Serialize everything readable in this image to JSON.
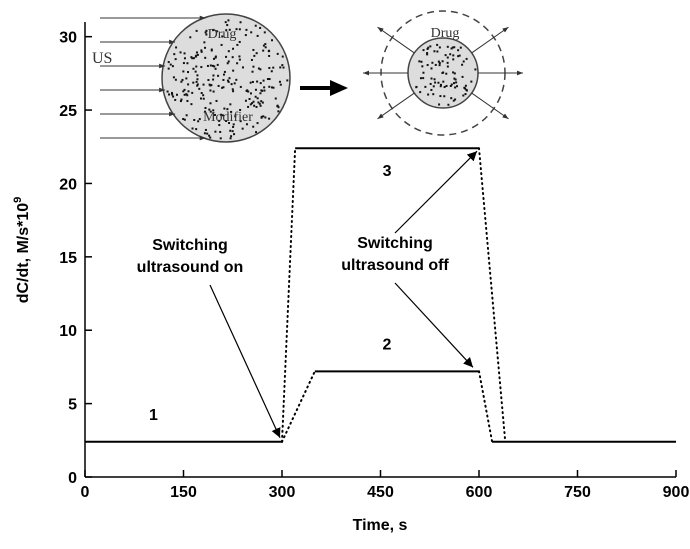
{
  "chart_data": {
    "type": "line",
    "x_label": "Time, s",
    "y_label": "dC/dt, M/s*10",
    "y_label_sup": "9",
    "xlim": [
      0,
      900
    ],
    "xticks": [
      0,
      150,
      300,
      450,
      600,
      750,
      900
    ],
    "ylim": [
      0,
      31
    ],
    "yticks": [
      0,
      5,
      10,
      15,
      20,
      25,
      30
    ],
    "color": "#000000",
    "series": [
      {
        "name": "1",
        "x": [
          0,
          300
        ],
        "values": [
          2.4,
          2.4
        ]
      },
      {
        "name": "2",
        "x": [
          350,
          600
        ],
        "values": [
          7.2,
          7.2
        ]
      },
      {
        "name": "3",
        "x": [
          320,
          600
        ],
        "values": [
          22.4,
          22.4
        ]
      },
      {
        "x": [
          620,
          900
        ],
        "values": [
          2.4,
          2.4
        ]
      }
    ],
    "connectors": [
      {
        "x": [
          300,
          320
        ],
        "values": [
          2.4,
          22.4
        ]
      },
      {
        "x": [
          300,
          350
        ],
        "values": [
          2.4,
          7.2
        ]
      },
      {
        "x": [
          600,
          640
        ],
        "values": [
          22.4,
          2.4
        ]
      },
      {
        "x": [
          600,
          620
        ],
        "values": [
          7.2,
          2.4
        ]
      }
    ],
    "annotations": [
      {
        "lines": [
          "Switching",
          "ultrasound on"
        ]
      },
      {
        "lines": [
          "Switching",
          "ultrasound off"
        ]
      }
    ],
    "inset": {
      "us": "US",
      "drug_left": "Drug",
      "modifier": "Modifier",
      "drug_right": "Drug"
    }
  }
}
